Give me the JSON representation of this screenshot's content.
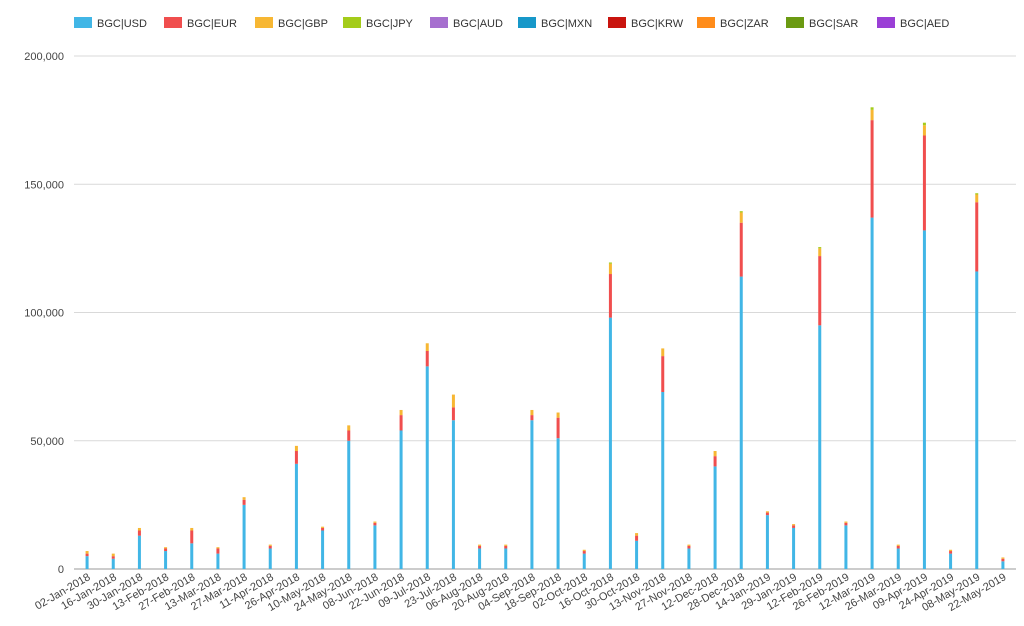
{
  "chart_data": {
    "type": "bar",
    "stacked": true,
    "title": "",
    "xlabel": "",
    "ylabel": "",
    "ylim": [
      0,
      200000
    ],
    "y_ticks": [
      0,
      50000,
      100000,
      150000,
      200000
    ],
    "y_tick_labels": [
      "0",
      "50,000",
      "100,000",
      "150,000",
      "200,000"
    ],
    "x_tick_labels": [
      "02-Jan-2018",
      "16-Jan-2018",
      "30-Jan-2018",
      "13-Feb-2018",
      "27-Feb-2018",
      "13-Mar-2018",
      "27-Mar-2018",
      "11-Apr-2018",
      "26-Apr-2018",
      "10-May-2018",
      "24-May-2018",
      "08-Jun-2018",
      "22-Jun-2018",
      "09-Jul-2018",
      "23-Jul-2018",
      "06-Aug-2018",
      "20-Aug-2018",
      "04-Sep-2018",
      "18-Sep-2018",
      "02-Oct-2018",
      "16-Oct-2018",
      "30-Oct-2018",
      "13-Nov-2018",
      "27-Nov-2018",
      "12-Dec-2018",
      "28-Dec-2018",
      "14-Jan-2019",
      "29-Jan-2019",
      "12-Feb-2019",
      "26-Feb-2019",
      "12-Mar-2019",
      "26-Mar-2019",
      "09-Apr-2019",
      "24-Apr-2019",
      "08-May-2019",
      "22-May-2019"
    ],
    "grid": true,
    "legend": {
      "position": "top",
      "entries": [
        {
          "name": "BGC|USD",
          "color": "#41b6e6"
        },
        {
          "name": "BGC|EUR",
          "color": "#f04e4e"
        },
        {
          "name": "BGC|GBP",
          "color": "#f7b733"
        },
        {
          "name": "BGC|JPY",
          "color": "#a4cc1a"
        },
        {
          "name": "BGC|AUD",
          "color": "#a66fcf"
        },
        {
          "name": "BGC|MXN",
          "color": "#1798c9"
        },
        {
          "name": "BGC|KRW",
          "color": "#c9140e"
        },
        {
          "name": "BGC|ZAR",
          "color": "#ff8c1a"
        },
        {
          "name": "BGC|SAR",
          "color": "#6b9a12"
        },
        {
          "name": "BGC|AED",
          "color": "#9a3fd6"
        }
      ]
    },
    "categories": [
      "02-Jan-2018",
      "16-Jan-2018",
      "30-Jan-2018",
      "13-Feb-2018",
      "27-Feb-2018",
      "13-Mar-2018",
      "27-Mar-2018",
      "11-Apr-2018",
      "26-Apr-2018",
      "10-May-2018",
      "24-May-2018",
      "08-Jun-2018",
      "22-Jun-2018",
      "09-Jul-2018",
      "23-Jul-2018",
      "06-Aug-2018",
      "20-Aug-2018",
      "04-Sep-2018",
      "18-Sep-2018",
      "02-Oct-2018",
      "16-Oct-2018",
      "30-Oct-2018",
      "13-Nov-2018",
      "27-Nov-2018",
      "12-Dec-2018",
      "28-Dec-2018",
      "14-Jan-2019",
      "29-Jan-2019",
      "12-Feb-2019",
      "26-Feb-2019",
      "12-Mar-2019",
      "26-Mar-2019",
      "09-Apr-2019",
      "24-Apr-2019",
      "08-May-2019",
      "22-May-2019"
    ],
    "series": [
      {
        "name": "BGC|USD",
        "color": "#41b6e6",
        "values": [
          5000,
          4000,
          13000,
          7000,
          10000,
          6000,
          25000,
          8000,
          41000,
          15000,
          50000,
          17000,
          54000,
          79000,
          58000,
          8000,
          8000,
          58000,
          51000,
          6000,
          98000,
          11000,
          69000,
          8000,
          40000,
          114000,
          21000,
          16000,
          95000,
          17000,
          137000,
          8000,
          132000,
          6000,
          116000,
          3000
        ]
      },
      {
        "name": "BGC|EUR",
        "color": "#f04e4e",
        "values": [
          1000,
          1000,
          2000,
          1000,
          5000,
          2000,
          2000,
          1000,
          5000,
          1000,
          4000,
          1000,
          6000,
          6000,
          5000,
          1000,
          1000,
          2000,
          8000,
          1000,
          17000,
          2000,
          14000,
          1000,
          4000,
          21000,
          1000,
          1000,
          27000,
          1000,
          38000,
          1000,
          37000,
          1000,
          27000,
          1000
        ]
      },
      {
        "name": "BGC|GBP",
        "color": "#f7b733",
        "values": [
          1000,
          1000,
          1000,
          500,
          1000,
          500,
          1000,
          500,
          2000,
          500,
          2000,
          500,
          2000,
          3000,
          5000,
          500,
          500,
          2000,
          2000,
          500,
          4000,
          1000,
          3000,
          500,
          2000,
          4000,
          500,
          500,
          3000,
          500,
          4000,
          500,
          4000,
          500,
          3000,
          500
        ]
      },
      {
        "name": "BGC|JPY",
        "color": "#a4cc1a",
        "values": [
          0,
          0,
          0,
          0,
          0,
          0,
          0,
          0,
          0,
          0,
          0,
          0,
          0,
          0,
          0,
          0,
          0,
          0,
          0,
          0,
          500,
          0,
          0,
          0,
          0,
          500,
          0,
          0,
          500,
          0,
          1000,
          0,
          1000,
          0,
          500,
          0
        ]
      },
      {
        "name": "BGC|AUD",
        "color": "#a66fcf",
        "values": [
          0,
          0,
          0,
          0,
          0,
          0,
          0,
          0,
          0,
          0,
          0,
          0,
          0,
          0,
          0,
          0,
          0,
          0,
          0,
          0,
          0,
          0,
          0,
          0,
          0,
          0,
          0,
          0,
          0,
          0,
          0,
          0,
          0,
          0,
          0,
          0
        ]
      },
      {
        "name": "BGC|MXN",
        "color": "#1798c9",
        "values": [
          0,
          0,
          0,
          0,
          0,
          0,
          0,
          0,
          0,
          0,
          0,
          0,
          0,
          0,
          0,
          0,
          0,
          0,
          0,
          0,
          0,
          0,
          0,
          0,
          0,
          0,
          0,
          0,
          0,
          0,
          0,
          0,
          0,
          0,
          0,
          0
        ]
      },
      {
        "name": "BGC|KRW",
        "color": "#c9140e",
        "values": [
          0,
          0,
          0,
          0,
          0,
          0,
          0,
          0,
          0,
          0,
          0,
          0,
          0,
          0,
          0,
          0,
          0,
          0,
          0,
          0,
          0,
          0,
          0,
          0,
          0,
          0,
          0,
          0,
          0,
          0,
          0,
          0,
          0,
          0,
          0,
          0
        ]
      },
      {
        "name": "BGC|ZAR",
        "color": "#ff8c1a",
        "values": [
          0,
          0,
          0,
          0,
          0,
          0,
          0,
          0,
          0,
          0,
          0,
          0,
          0,
          0,
          0,
          0,
          0,
          0,
          0,
          0,
          0,
          0,
          0,
          0,
          0,
          0,
          0,
          0,
          0,
          0,
          0,
          0,
          0,
          0,
          0,
          0
        ]
      },
      {
        "name": "BGC|SAR",
        "color": "#6b9a12",
        "values": [
          0,
          0,
          0,
          0,
          0,
          0,
          0,
          0,
          0,
          0,
          0,
          0,
          0,
          0,
          0,
          0,
          0,
          0,
          0,
          0,
          0,
          0,
          0,
          0,
          0,
          0,
          0,
          0,
          0,
          0,
          0,
          0,
          0,
          0,
          0,
          0
        ]
      },
      {
        "name": "BGC|AED",
        "color": "#9a3fd6",
        "values": [
          0,
          0,
          0,
          0,
          0,
          0,
          0,
          0,
          0,
          0,
          0,
          0,
          0,
          0,
          0,
          0,
          0,
          0,
          0,
          0,
          0,
          0,
          0,
          0,
          0,
          0,
          0,
          0,
          0,
          0,
          0,
          0,
          0,
          0,
          0,
          0
        ]
      }
    ]
  }
}
